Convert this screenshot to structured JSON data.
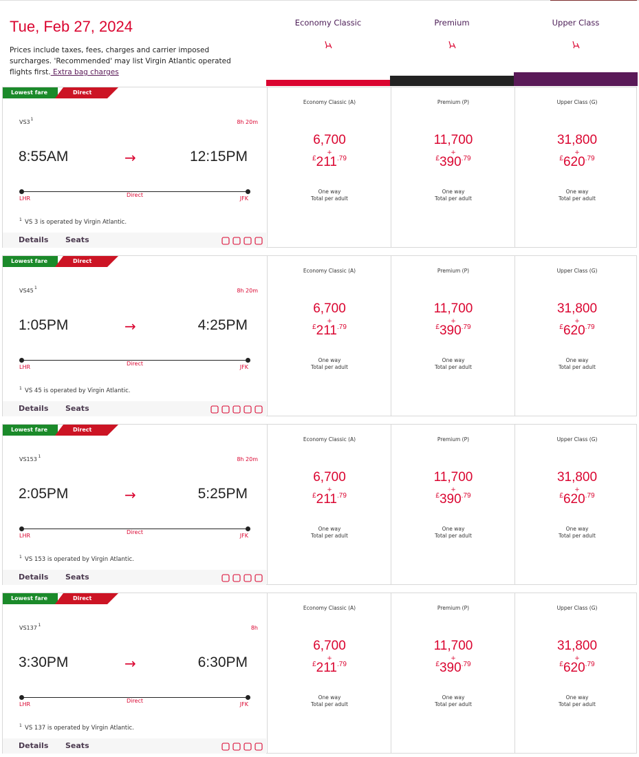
{
  "header": {
    "date": "Tue, Feb 27, 2024",
    "note": "Prices include taxes, fees, charges and carrier imposed surcharges. 'Recommended' may list Virgin Atlantic operated flights first.",
    "link": " Extra bag charges"
  },
  "cabins": [
    {
      "name": "Economy Classic",
      "color": "#da0530"
    },
    {
      "name": "Premium",
      "color": "#222222"
    },
    {
      "name": "Upper Class",
      "color": "#5a1a58"
    }
  ],
  "flights": [
    {
      "badges": [
        "Lowest fare",
        "Direct"
      ],
      "number": "VS3",
      "mark": "1",
      "duration": "8h 20m",
      "depart": "8:55AM",
      "arrow": "→",
      "arrive": "12:15PM",
      "from": "LHR",
      "stops": "Direct",
      "to": "JFK",
      "footnote_mark": "1",
      "footnote": "VS 3 is operated by Virgin Atlantic.",
      "details": "Details",
      "seats": "Seats",
      "fares": [
        {
          "cabin": "Economy Classic (A)",
          "points": "6,700",
          "plus": "+",
          "currency": "£",
          "amount": "211",
          "pence": ".79",
          "trip": "One way",
          "per": "Total per adult"
        },
        {
          "cabin": "Premium (P)",
          "points": "11,700",
          "plus": "+",
          "currency": "£",
          "amount": "390",
          "pence": ".79",
          "trip": "One way",
          "per": "Total per adult"
        },
        {
          "cabin": "Upper Class (G)",
          "points": "31,800",
          "plus": "+",
          "currency": "£",
          "amount": "620",
          "pence": ".79",
          "trip": "One way",
          "per": "Total per adult"
        }
      ]
    },
    {
      "badges": [
        "Lowest fare",
        "Direct"
      ],
      "number": "VS45",
      "mark": "1",
      "duration": "8h 20m",
      "depart": "1:05PM",
      "arrow": "→",
      "arrive": "4:25PM",
      "from": "LHR",
      "stops": "Direct",
      "to": "JFK",
      "footnote_mark": "1",
      "footnote": "VS 45 is operated by Virgin Atlantic.",
      "details": "Details",
      "seats": "Seats",
      "fares": [
        {
          "cabin": "Economy Classic (A)",
          "points": "6,700",
          "plus": "+",
          "currency": "£",
          "amount": "211",
          "pence": ".79",
          "trip": "One way",
          "per": "Total per adult"
        },
        {
          "cabin": "Premium (P)",
          "points": "11,700",
          "plus": "+",
          "currency": "£",
          "amount": "390",
          "pence": ".79",
          "trip": "One way",
          "per": "Total per adult"
        },
        {
          "cabin": "Upper Class (G)",
          "points": "31,800",
          "plus": "+",
          "currency": "£",
          "amount": "620",
          "pence": ".79",
          "trip": "One way",
          "per": "Total per adult"
        }
      ]
    },
    {
      "badges": [
        "Lowest fare",
        "Direct"
      ],
      "number": "VS153",
      "mark": "1",
      "duration": "8h 20m",
      "depart": "2:05PM",
      "arrow": "→",
      "arrive": "5:25PM",
      "from": "LHR",
      "stops": "Direct",
      "to": "JFK",
      "footnote_mark": "1",
      "footnote": "VS 153 is operated by Virgin Atlantic.",
      "details": "Details",
      "seats": "Seats",
      "fares": [
        {
          "cabin": "Economy Classic (A)",
          "points": "6,700",
          "plus": "+",
          "currency": "£",
          "amount": "211",
          "pence": ".79",
          "trip": "One way",
          "per": "Total per adult"
        },
        {
          "cabin": "Premium (P)",
          "points": "11,700",
          "plus": "+",
          "currency": "£",
          "amount": "390",
          "pence": ".79",
          "trip": "One way",
          "per": "Total per adult"
        },
        {
          "cabin": "Upper Class (G)",
          "points": "31,800",
          "plus": "+",
          "currency": "£",
          "amount": "620",
          "pence": ".79",
          "trip": "One way",
          "per": "Total per adult"
        }
      ]
    },
    {
      "badges": [
        "Lowest fare",
        "Direct"
      ],
      "number": "VS137",
      "mark": "1",
      "duration": "8h",
      "depart": "3:30PM",
      "arrow": "→",
      "arrive": "6:30PM",
      "from": "LHR",
      "stops": "Direct",
      "to": "JFK",
      "footnote_mark": "1",
      "footnote": "VS 137 is operated by Virgin Atlantic.",
      "details": "Details",
      "seats": "Seats",
      "fares": [
        {
          "cabin": "Economy Classic (A)",
          "points": "6,700",
          "plus": "+",
          "currency": "£",
          "amount": "211",
          "pence": ".79",
          "trip": "One way",
          "per": "Total per adult"
        },
        {
          "cabin": "Premium (P)",
          "points": "11,700",
          "plus": "+",
          "currency": "£",
          "amount": "390",
          "pence": ".79",
          "trip": "One way",
          "per": "Total per adult"
        },
        {
          "cabin": "Upper Class (G)",
          "points": "31,800",
          "plus": "+",
          "currency": "£",
          "amount": "620",
          "pence": ".79",
          "trip": "One way",
          "per": "Total per adult"
        }
      ]
    }
  ]
}
